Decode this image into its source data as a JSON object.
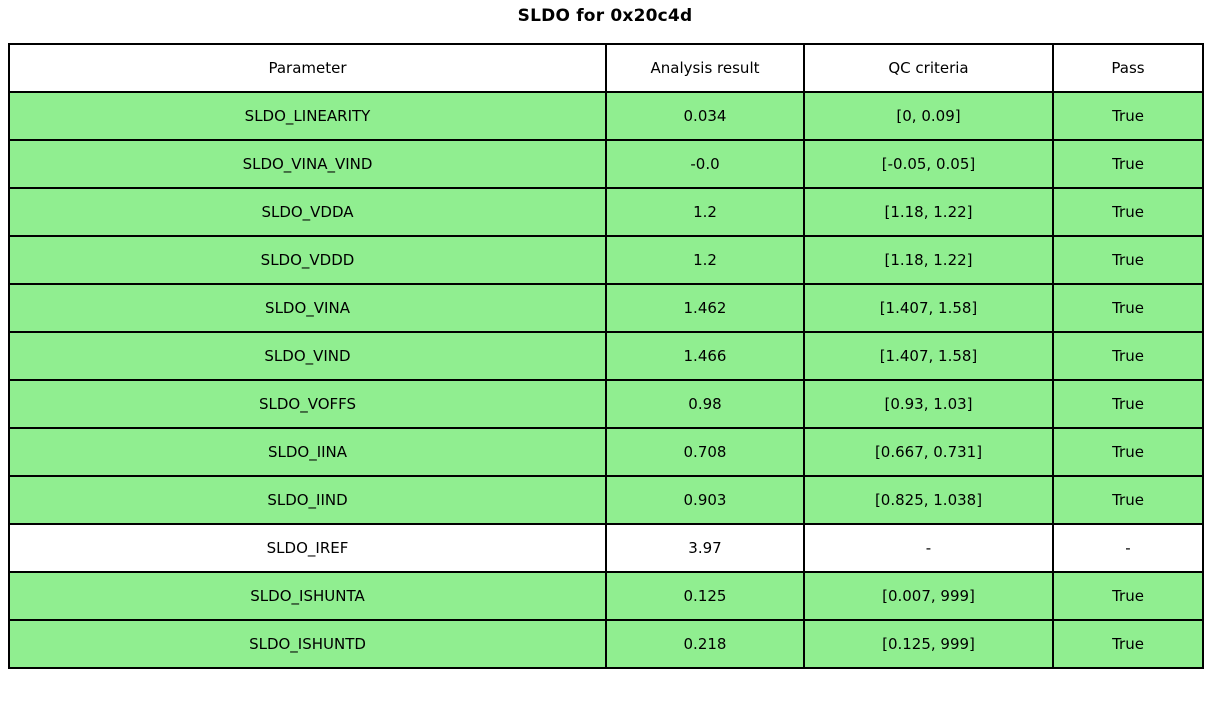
{
  "title": "SLDO for 0x20c4d",
  "colors": {
    "pass_row_bg": "#90EE90",
    "neutral_row_bg": "#FFFFFF",
    "border": "#000000",
    "text": "#000000"
  },
  "chart_data": {
    "type": "table",
    "title": "SLDO for 0x20c4d",
    "columns": [
      "Parameter",
      "Analysis result",
      "QC criteria",
      "Pass"
    ],
    "rows": [
      {
        "parameter": "SLDO_LINEARITY",
        "analysis_result": "0.034",
        "qc_criteria": "[0, 0.09]",
        "pass": "True",
        "highlighted": true
      },
      {
        "parameter": "SLDO_VINA_VIND",
        "analysis_result": "-0.0",
        "qc_criteria": "[-0.05, 0.05]",
        "pass": "True",
        "highlighted": true
      },
      {
        "parameter": "SLDO_VDDA",
        "analysis_result": "1.2",
        "qc_criteria": "[1.18, 1.22]",
        "pass": "True",
        "highlighted": true
      },
      {
        "parameter": "SLDO_VDDD",
        "analysis_result": "1.2",
        "qc_criteria": "[1.18, 1.22]",
        "pass": "True",
        "highlighted": true
      },
      {
        "parameter": "SLDO_VINA",
        "analysis_result": "1.462",
        "qc_criteria": "[1.407, 1.58]",
        "pass": "True",
        "highlighted": true
      },
      {
        "parameter": "SLDO_VIND",
        "analysis_result": "1.466",
        "qc_criteria": "[1.407, 1.58]",
        "pass": "True",
        "highlighted": true
      },
      {
        "parameter": "SLDO_VOFFS",
        "analysis_result": "0.98",
        "qc_criteria": "[0.93, 1.03]",
        "pass": "True",
        "highlighted": true
      },
      {
        "parameter": "SLDO_IINA",
        "analysis_result": "0.708",
        "qc_criteria": "[0.667, 0.731]",
        "pass": "True",
        "highlighted": true
      },
      {
        "parameter": "SLDO_IIND",
        "analysis_result": "0.903",
        "qc_criteria": "[0.825, 1.038]",
        "pass": "True",
        "highlighted": true
      },
      {
        "parameter": "SLDO_IREF",
        "analysis_result": "3.97",
        "qc_criteria": "-",
        "pass": "-",
        "highlighted": false
      },
      {
        "parameter": "SLDO_ISHUNTA",
        "analysis_result": "0.125",
        "qc_criteria": "[0.007, 999]",
        "pass": "True",
        "highlighted": true
      },
      {
        "parameter": "SLDO_ISHUNTD",
        "analysis_result": "0.218",
        "qc_criteria": "[0.125, 999]",
        "pass": "True",
        "highlighted": true
      }
    ]
  }
}
